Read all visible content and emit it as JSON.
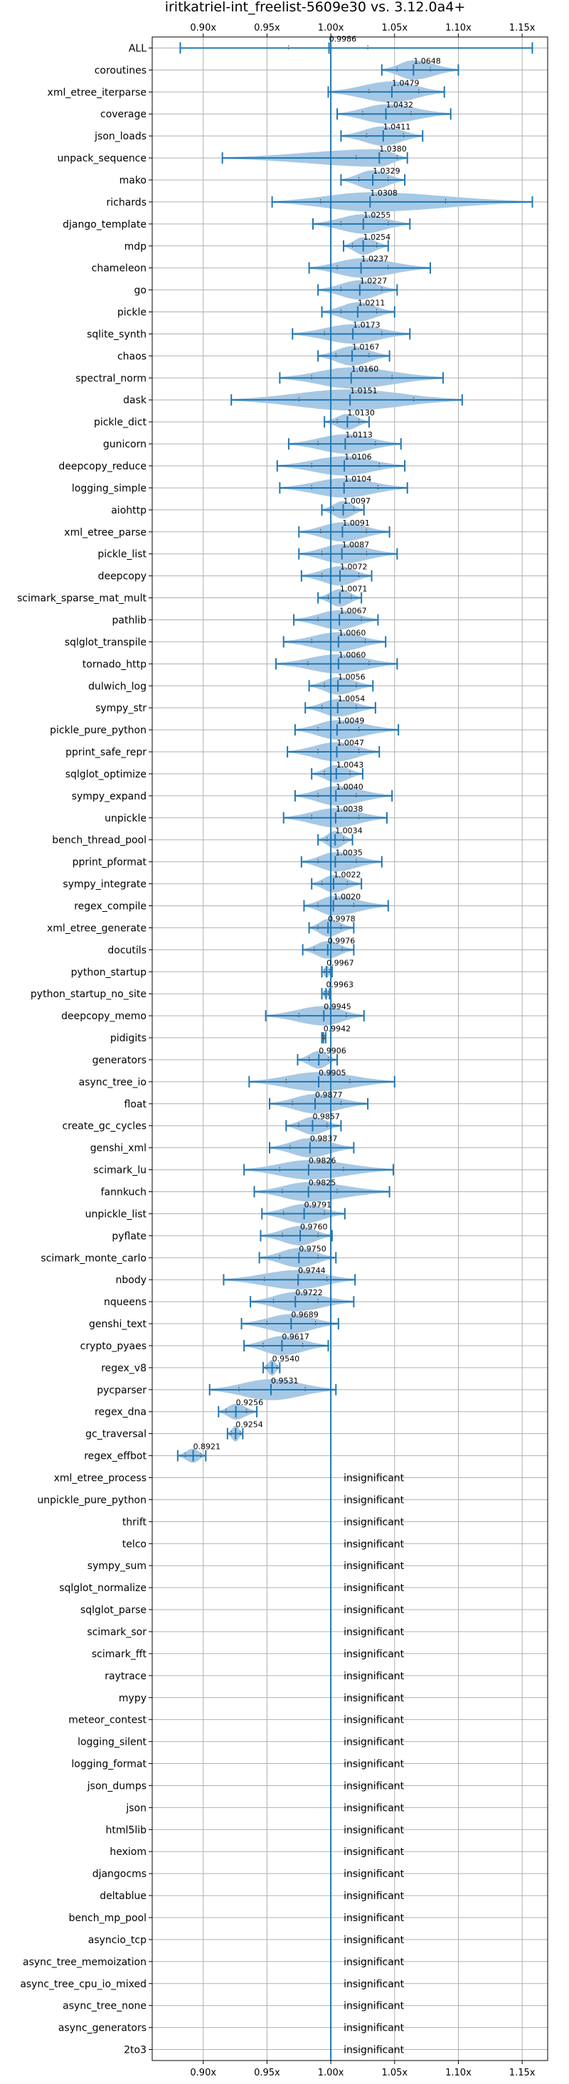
{
  "chart_data": {
    "type": "violin",
    "title": "iritkatriel-int_freelist-5609e30 vs. 3.12.0a4+",
    "xlim": [
      0.86,
      1.17
    ],
    "xticks": [
      0.9,
      0.95,
      1.0,
      1.05,
      1.1,
      1.15
    ],
    "xtick_labels": [
      "0.90x",
      "0.95x",
      "1.00x",
      "1.05x",
      "1.10x",
      "1.15x"
    ],
    "reference_line": 1.0,
    "grid": true,
    "insignificant_label": "insignificant",
    "colors": {
      "violin": "#a6c8e4",
      "line": "#1f77b4",
      "grid": "#b0b0b0"
    },
    "benchmarks": [
      {
        "name": "ALL",
        "mean": 0.9986,
        "label": "0.9986",
        "min": 0.882,
        "max": 1.158,
        "width": 0.006,
        "q1": 0.967,
        "q3": 1.029
      },
      {
        "name": "coroutines",
        "mean": 1.0648,
        "label": "1.0648",
        "min": 1.04,
        "max": 1.1,
        "width": 0.55,
        "q1": 1.052,
        "q3": 1.078
      },
      {
        "name": "xml_etree_iterparse",
        "mean": 1.0479,
        "label": "1.0479",
        "min": 0.998,
        "max": 1.089,
        "width": 0.6,
        "q1": 1.03,
        "q3": 1.069
      },
      {
        "name": "coverage",
        "mean": 1.0432,
        "label": "1.0432",
        "min": 1.005,
        "max": 1.094,
        "width": 0.55,
        "q1": 1.025,
        "q3": 1.063
      },
      {
        "name": "json_loads",
        "mean": 1.0411,
        "label": "1.0411",
        "min": 1.008,
        "max": 1.072,
        "width": 0.55,
        "q1": 1.028,
        "q3": 1.057
      },
      {
        "name": "unpack_sequence",
        "mean": 1.038,
        "label": "1.0380",
        "min": 0.915,
        "max": 1.06,
        "width": 0.5,
        "q1": 1.02,
        "q3": 1.052
      },
      {
        "name": "mako",
        "mean": 1.0329,
        "label": "1.0329",
        "min": 1.008,
        "max": 1.058,
        "width": 0.55,
        "q1": 1.022,
        "q3": 1.045
      },
      {
        "name": "richards",
        "mean": 1.0308,
        "label": "1.0308",
        "min": 0.954,
        "max": 1.158,
        "width": 0.55,
        "q1": 0.992,
        "q3": 1.09
      },
      {
        "name": "django_template",
        "mean": 1.0255,
        "label": "1.0255",
        "min": 0.986,
        "max": 1.062,
        "width": 0.55,
        "q1": 1.008,
        "q3": 1.045
      },
      {
        "name": "mdp",
        "mean": 1.0254,
        "label": "1.0254",
        "min": 1.01,
        "max": 1.045,
        "width": 0.5,
        "q1": 1.017,
        "q3": 1.036
      },
      {
        "name": "chameleon",
        "mean": 1.0237,
        "label": "1.0237",
        "min": 0.983,
        "max": 1.078,
        "width": 0.55,
        "q1": 1.005,
        "q3": 1.045
      },
      {
        "name": "go",
        "mean": 1.0227,
        "label": "1.0227",
        "min": 0.99,
        "max": 1.052,
        "width": 0.55,
        "q1": 1.008,
        "q3": 1.04
      },
      {
        "name": "pickle",
        "mean": 1.0211,
        "label": "1.0211",
        "min": 0.993,
        "max": 1.05,
        "width": 0.55,
        "q1": 1.008,
        "q3": 1.036
      },
      {
        "name": "sqlite_synth",
        "mean": 1.0173,
        "label": "1.0173",
        "min": 0.97,
        "max": 1.062,
        "width": 0.55,
        "q1": 0.995,
        "q3": 1.04
      },
      {
        "name": "chaos",
        "mean": 1.0167,
        "label": "1.0167",
        "min": 0.99,
        "max": 1.046,
        "width": 0.55,
        "q1": 1.004,
        "q3": 1.03
      },
      {
        "name": "spectral_norm",
        "mean": 1.016,
        "label": "1.0160",
        "min": 0.96,
        "max": 1.088,
        "width": 0.6,
        "q1": 0.985,
        "q3": 1.048
      },
      {
        "name": "dask",
        "mean": 1.0151,
        "label": "1.0151",
        "min": 0.922,
        "max": 1.103,
        "width": 0.6,
        "q1": 0.975,
        "q3": 1.065
      },
      {
        "name": "pickle_dict",
        "mean": 1.013,
        "label": "1.0130",
        "min": 0.995,
        "max": 1.03,
        "width": 0.45,
        "q1": 1.005,
        "q3": 1.022
      },
      {
        "name": "gunicorn",
        "mean": 1.0113,
        "label": "1.0113",
        "min": 0.967,
        "max": 1.055,
        "width": 0.55,
        "q1": 0.99,
        "q3": 1.035
      },
      {
        "name": "deepcopy_reduce",
        "mean": 1.0106,
        "label": "1.0106",
        "min": 0.958,
        "max": 1.058,
        "width": 0.55,
        "q1": 0.985,
        "q3": 1.038
      },
      {
        "name": "logging_simple",
        "mean": 1.0104,
        "label": "1.0104",
        "min": 0.96,
        "max": 1.06,
        "width": 0.55,
        "q1": 0.985,
        "q3": 1.037
      },
      {
        "name": "aiohttp",
        "mean": 1.0097,
        "label": "1.0097",
        "min": 0.993,
        "max": 1.026,
        "width": 0.5,
        "q1": 1.002,
        "q3": 1.018
      },
      {
        "name": "xml_etree_parse",
        "mean": 1.0091,
        "label": "1.0091",
        "min": 0.975,
        "max": 1.046,
        "width": 0.55,
        "q1": 0.992,
        "q3": 1.028
      },
      {
        "name": "pickle_list",
        "mean": 1.0087,
        "label": "1.0087",
        "min": 0.975,
        "max": 1.052,
        "width": 0.55,
        "q1": 0.993,
        "q3": 1.028
      },
      {
        "name": "deepcopy",
        "mean": 1.0072,
        "label": "1.0072",
        "min": 0.977,
        "max": 1.032,
        "width": 0.55,
        "q1": 0.993,
        "q3": 1.022
      },
      {
        "name": "scimark_sparse_mat_mult",
        "mean": 1.0071,
        "label": "1.0071",
        "min": 0.99,
        "max": 1.024,
        "width": 0.5,
        "q1": 0.998,
        "q3": 1.016
      },
      {
        "name": "pathlib",
        "mean": 1.0067,
        "label": "1.0067",
        "min": 0.971,
        "max": 1.037,
        "width": 0.55,
        "q1": 0.99,
        "q3": 1.024
      },
      {
        "name": "sqlglot_transpile",
        "mean": 1.006,
        "label": "1.0060",
        "min": 0.963,
        "max": 1.043,
        "width": 0.55,
        "q1": 0.985,
        "q3": 1.027
      },
      {
        "name": "tornado_http",
        "mean": 1.006,
        "label": "1.0060",
        "min": 0.957,
        "max": 1.052,
        "width": 0.55,
        "q1": 0.982,
        "q3": 1.03
      },
      {
        "name": "dulwich_log",
        "mean": 1.0056,
        "label": "1.0056",
        "min": 0.983,
        "max": 1.033,
        "width": 0.5,
        "q1": 0.995,
        "q3": 1.02
      },
      {
        "name": "sympy_str",
        "mean": 1.0054,
        "label": "1.0054",
        "min": 0.98,
        "max": 1.035,
        "width": 0.5,
        "q1": 0.993,
        "q3": 1.02
      },
      {
        "name": "pickle_pure_python",
        "mean": 1.0049,
        "label": "1.0049",
        "min": 0.972,
        "max": 1.053,
        "width": 0.55,
        "q1": 0.99,
        "q3": 1.022
      },
      {
        "name": "pprint_safe_repr",
        "mean": 1.0047,
        "label": "1.0047",
        "min": 0.966,
        "max": 1.038,
        "width": 0.55,
        "q1": 0.99,
        "q3": 1.022
      },
      {
        "name": "sqlglot_optimize",
        "mean": 1.0043,
        "label": "1.0043",
        "min": 0.985,
        "max": 1.025,
        "width": 0.5,
        "q1": 0.995,
        "q3": 1.015
      },
      {
        "name": "sympy_expand",
        "mean": 1.004,
        "label": "1.0040",
        "min": 0.972,
        "max": 1.048,
        "width": 0.55,
        "q1": 0.99,
        "q3": 1.02
      },
      {
        "name": "unpickle",
        "mean": 1.0038,
        "label": "1.0038",
        "min": 0.963,
        "max": 1.044,
        "width": 0.55,
        "q1": 0.985,
        "q3": 1.022
      },
      {
        "name": "bench_thread_pool",
        "mean": 1.0034,
        "label": "1.0034",
        "min": 0.99,
        "max": 1.017,
        "width": 0.5,
        "q1": 0.997,
        "q3": 1.01
      },
      {
        "name": "pprint_pformat",
        "mean": 1.0035,
        "label": "1.0035",
        "min": 0.977,
        "max": 1.04,
        "width": 0.55,
        "q1": 0.99,
        "q3": 1.02
      },
      {
        "name": "sympy_integrate",
        "mean": 1.0022,
        "label": "1.0022",
        "min": 0.985,
        "max": 1.024,
        "width": 0.5,
        "q1": 0.993,
        "q3": 1.013
      },
      {
        "name": "regex_compile",
        "mean": 1.002,
        "label": "1.0020",
        "min": 0.979,
        "max": 1.045,
        "width": 0.55,
        "q1": 0.99,
        "q3": 1.018
      },
      {
        "name": "xml_etree_generate",
        "mean": 0.9978,
        "label": "0.9978",
        "min": 0.983,
        "max": 1.018,
        "width": 0.5,
        "q1": 0.99,
        "q3": 1.008
      },
      {
        "name": "docutils",
        "mean": 0.9976,
        "label": "0.9976",
        "min": 0.978,
        "max": 1.018,
        "width": 0.5,
        "q1": 0.987,
        "q3": 1.009
      },
      {
        "name": "python_startup",
        "mean": 0.9967,
        "label": "0.9967",
        "min": 0.993,
        "max": 1.001,
        "width": 0.35,
        "q1": 0.995,
        "q3": 0.999
      },
      {
        "name": "python_startup_no_site",
        "mean": 0.9963,
        "label": "0.9963",
        "min": 0.993,
        "max": 0.999,
        "width": 0.3,
        "q1": 0.995,
        "q3": 0.998
      },
      {
        "name": "deepcopy_memo",
        "mean": 0.9945,
        "label": "0.9945",
        "min": 0.949,
        "max": 1.026,
        "width": 0.55,
        "q1": 0.975,
        "q3": 1.012
      },
      {
        "name": "pidigits",
        "mean": 0.9942,
        "label": "0.9942",
        "min": 0.993,
        "max": 0.996,
        "width": 0.3,
        "q1": 0.9935,
        "q3": 0.995
      },
      {
        "name": "generators",
        "mean": 0.9906,
        "label": "0.9906",
        "min": 0.974,
        "max": 1.005,
        "width": 0.5,
        "q1": 0.983,
        "q3": 0.998
      },
      {
        "name": "async_tree_io",
        "mean": 0.9905,
        "label": "0.9905",
        "min": 0.936,
        "max": 1.05,
        "width": 0.55,
        "q1": 0.965,
        "q3": 1.015
      },
      {
        "name": "float",
        "mean": 0.9877,
        "label": "0.9877",
        "min": 0.952,
        "max": 1.029,
        "width": 0.55,
        "q1": 0.97,
        "q3": 1.008
      },
      {
        "name": "create_gc_cycles",
        "mean": 0.9857,
        "label": "0.9857",
        "min": 0.965,
        "max": 1.008,
        "width": 0.5,
        "q1": 0.975,
        "q3": 0.997
      },
      {
        "name": "genshi_xml",
        "mean": 0.9837,
        "label": "0.9837",
        "min": 0.952,
        "max": 1.018,
        "width": 0.55,
        "q1": 0.968,
        "q3": 1.0
      },
      {
        "name": "scimark_lu",
        "mean": 0.9826,
        "label": "0.9826",
        "min": 0.932,
        "max": 1.049,
        "width": 0.55,
        "q1": 0.96,
        "q3": 1.01
      },
      {
        "name": "fannkuch",
        "mean": 0.9825,
        "label": "0.9825",
        "min": 0.94,
        "max": 1.046,
        "width": 0.55,
        "q1": 0.962,
        "q3": 1.005
      },
      {
        "name": "unpickle_list",
        "mean": 0.9791,
        "label": "0.9791",
        "min": 0.946,
        "max": 1.011,
        "width": 0.55,
        "q1": 0.963,
        "q3": 0.995
      },
      {
        "name": "pyflate",
        "mean": 0.976,
        "label": "0.9760",
        "min": 0.945,
        "max": 1.001,
        "width": 0.55,
        "q1": 0.962,
        "q3": 0.99
      },
      {
        "name": "scimark_monte_carlo",
        "mean": 0.975,
        "label": "0.9750",
        "min": 0.944,
        "max": 1.004,
        "width": 0.55,
        "q1": 0.96,
        "q3": 0.99
      },
      {
        "name": "nbody",
        "mean": 0.9744,
        "label": "0.9744",
        "min": 0.916,
        "max": 1.019,
        "width": 0.55,
        "q1": 0.948,
        "q3": 0.997
      },
      {
        "name": "nqueens",
        "mean": 0.9722,
        "label": "0.9722",
        "min": 0.937,
        "max": 1.018,
        "width": 0.55,
        "q1": 0.955,
        "q3": 0.99
      },
      {
        "name": "genshi_text",
        "mean": 0.9689,
        "label": "0.9689",
        "min": 0.93,
        "max": 1.006,
        "width": 0.55,
        "q1": 0.95,
        "q3": 0.988
      },
      {
        "name": "crypto_pyaes",
        "mean": 0.9617,
        "label": "0.9617",
        "min": 0.932,
        "max": 0.998,
        "width": 0.55,
        "q1": 0.947,
        "q3": 0.978
      },
      {
        "name": "regex_v8",
        "mean": 0.954,
        "label": "0.9540",
        "min": 0.947,
        "max": 0.96,
        "width": 0.45,
        "q1": 0.95,
        "q3": 0.958
      },
      {
        "name": "pycparser",
        "mean": 0.9531,
        "label": "0.9531",
        "min": 0.905,
        "max": 1.004,
        "width": 0.6,
        "q1": 0.928,
        "q3": 0.98
      },
      {
        "name": "regex_dna",
        "mean": 0.9256,
        "label": "0.9256",
        "min": 0.912,
        "max": 0.942,
        "width": 0.45,
        "q1": 0.918,
        "q3": 0.934
      },
      {
        "name": "gc_traversal",
        "mean": 0.9254,
        "label": "0.9254",
        "min": 0.919,
        "max": 0.931,
        "width": 0.45,
        "q1": 0.922,
        "q3": 0.929
      },
      {
        "name": "regex_effbot",
        "mean": 0.8921,
        "label": "0.8921",
        "min": 0.88,
        "max": 0.902,
        "width": 0.4,
        "q1": 0.886,
        "q3": 0.898
      },
      {
        "name": "xml_etree_process",
        "insignificant": true
      },
      {
        "name": "unpickle_pure_python",
        "insignificant": true
      },
      {
        "name": "thrift",
        "insignificant": true
      },
      {
        "name": "telco",
        "insignificant": true
      },
      {
        "name": "sympy_sum",
        "insignificant": true
      },
      {
        "name": "sqlglot_normalize",
        "insignificant": true
      },
      {
        "name": "sqlglot_parse",
        "insignificant": true
      },
      {
        "name": "scimark_sor",
        "insignificant": true
      },
      {
        "name": "scimark_fft",
        "insignificant": true
      },
      {
        "name": "raytrace",
        "insignificant": true
      },
      {
        "name": "mypy",
        "insignificant": true
      },
      {
        "name": "meteor_contest",
        "insignificant": true
      },
      {
        "name": "logging_silent",
        "insignificant": true
      },
      {
        "name": "logging_format",
        "insignificant": true
      },
      {
        "name": "json_dumps",
        "insignificant": true
      },
      {
        "name": "json",
        "insignificant": true
      },
      {
        "name": "html5lib",
        "insignificant": true
      },
      {
        "name": "hexiom",
        "insignificant": true
      },
      {
        "name": "djangocms",
        "insignificant": true
      },
      {
        "name": "deltablue",
        "insignificant": true
      },
      {
        "name": "bench_mp_pool",
        "insignificant": true
      },
      {
        "name": "asyncio_tcp",
        "insignificant": true
      },
      {
        "name": "async_tree_memoization",
        "insignificant": true
      },
      {
        "name": "async_tree_cpu_io_mixed",
        "insignificant": true
      },
      {
        "name": "async_tree_none",
        "insignificant": true
      },
      {
        "name": "async_generators",
        "insignificant": true
      },
      {
        "name": "2to3",
        "insignificant": true
      }
    ]
  }
}
